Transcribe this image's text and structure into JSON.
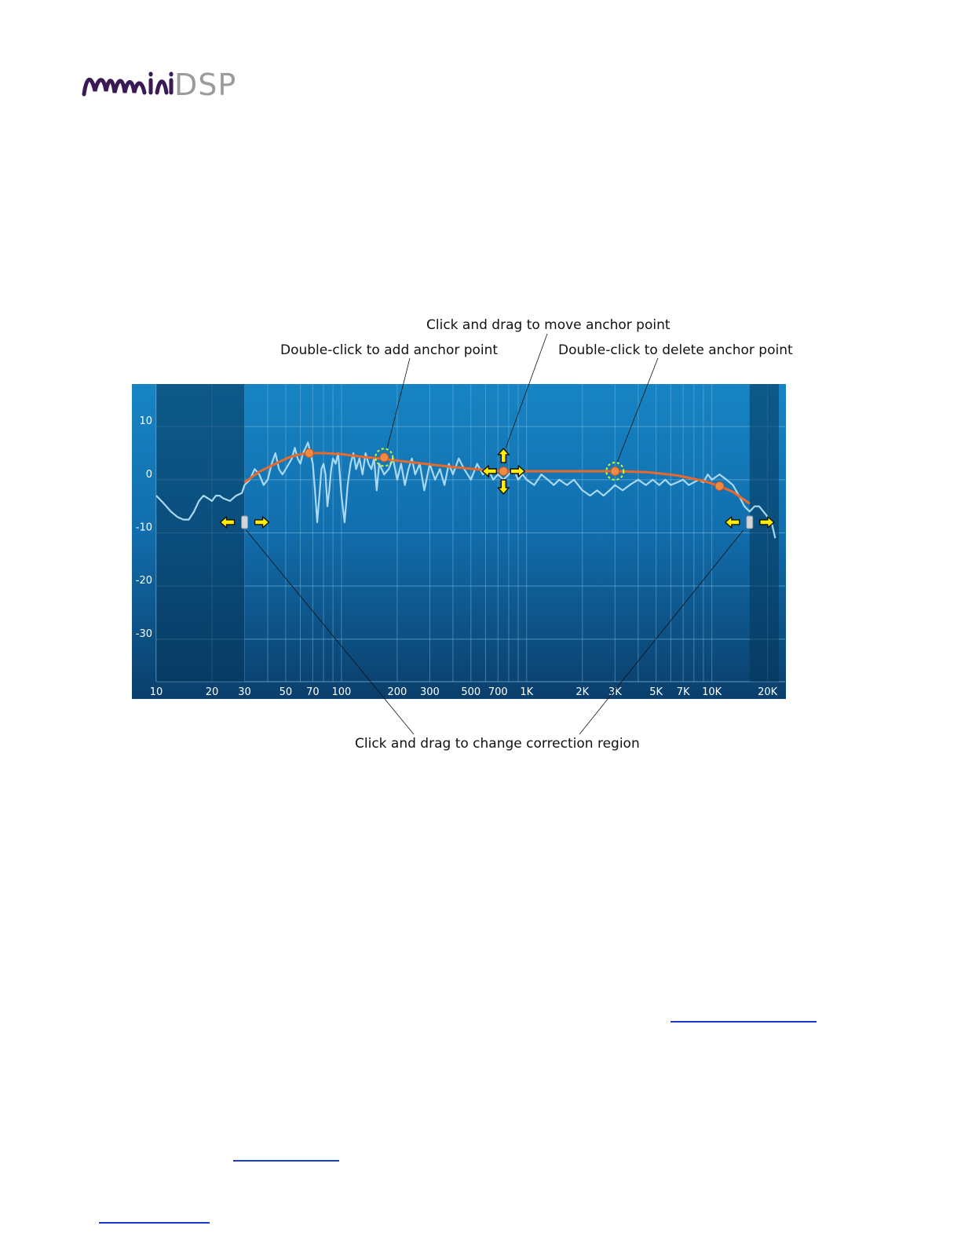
{
  "logo": {
    "text": "miniDSP",
    "part_mini": "mini",
    "part_dsp": "DSP",
    "color_mini": "#3a1a55",
    "color_dsp": "#9b9b9b"
  },
  "callouts": {
    "move": "Click and drag to move anchor point",
    "add": "Double-click to add anchor point",
    "delete": "Double-click to delete anchor point",
    "region": "Click and drag to change correction region"
  },
  "chart_data": {
    "type": "line",
    "xscale": "log",
    "xlim": [
      10,
      23000
    ],
    "ylim": [
      -38,
      18
    ],
    "x_ticks": [
      10,
      20,
      30,
      50,
      70,
      100,
      200,
      300,
      500,
      700,
      1000,
      2000,
      3000,
      5000,
      7000,
      10000,
      20000
    ],
    "x_tick_labels": [
      "10",
      "20",
      "30",
      "50",
      "70",
      "100",
      "200",
      "300",
      "500",
      "700",
      "1K",
      "2K",
      "3K",
      "5K",
      "7K",
      "10K",
      "20K"
    ],
    "y_ticks": [
      10,
      0,
      -10,
      -20,
      -30
    ],
    "y_tick_labels": [
      "10",
      "0",
      "-10",
      "-20",
      "-30"
    ],
    "grid": true,
    "correction_region": [
      30,
      16000
    ],
    "series": [
      {
        "role": "measurement",
        "color": "#a9d8f2",
        "x": [
          10,
          11,
          12,
          13,
          14,
          15,
          16,
          17,
          18,
          19,
          20,
          21,
          22,
          23,
          25,
          27,
          29,
          30,
          32,
          34,
          36,
          38,
          40,
          42,
          44,
          46,
          48,
          50,
          52,
          54,
          56,
          58,
          60,
          62,
          64,
          66,
          68,
          70,
          72,
          74,
          76,
          78,
          80,
          82,
          84,
          86,
          88,
          90,
          93,
          96,
          100,
          104,
          108,
          112,
          116,
          120,
          125,
          130,
          135,
          140,
          145,
          150,
          155,
          160,
          170,
          180,
          190,
          200,
          210,
          220,
          230,
          240,
          250,
          265,
          280,
          300,
          320,
          340,
          360,
          380,
          400,
          430,
          460,
          500,
          540,
          580,
          620,
          660,
          700,
          750,
          800,
          850,
          900,
          950,
          1000,
          1100,
          1200,
          1300,
          1400,
          1500,
          1650,
          1800,
          2000,
          2200,
          2400,
          2600,
          2800,
          3000,
          3300,
          3600,
          4000,
          4400,
          4800,
          5200,
          5600,
          6000,
          6500,
          7000,
          7500,
          8000,
          8500,
          9000,
          9500,
          10000,
          11000,
          12000,
          13000,
          14000,
          15000,
          16000,
          17000,
          18000,
          19000,
          20000,
          21000,
          22000
        ],
        "y": [
          -3,
          -4.5,
          -6,
          -7,
          -7.5,
          -7.5,
          -6,
          -4,
          -3,
          -3.5,
          -4,
          -3,
          -3,
          -3.5,
          -4,
          -3,
          -2.5,
          -1,
          0,
          2,
          1,
          -1,
          0,
          3,
          5,
          2,
          1,
          2,
          3,
          4,
          6,
          4,
          3,
          5,
          6,
          7,
          5,
          3,
          -2,
          -8,
          -3,
          2,
          3,
          1,
          -5,
          -2,
          2,
          4,
          3,
          5,
          -3,
          -8,
          -1,
          3,
          5,
          2,
          4,
          1,
          5,
          3,
          2,
          4,
          -2,
          3,
          1,
          2,
          4,
          0,
          3,
          -1,
          2,
          4,
          1,
          3,
          -2,
          3,
          0,
          2,
          -1,
          3,
          1,
          4,
          2,
          0,
          3,
          1,
          2,
          0,
          1,
          0,
          1,
          2,
          0,
          1,
          0,
          -1,
          1,
          0,
          -1,
          0,
          -1,
          0,
          -2,
          -3,
          -2,
          -3,
          -2,
          -1,
          -2,
          -1,
          0,
          -1,
          0,
          -1,
          0,
          -1,
          -0.5,
          0,
          -1,
          -0.5,
          0,
          -0.5,
          1,
          0,
          1,
          0,
          -1,
          -3,
          -5,
          -6,
          -5,
          -5,
          -6,
          -7,
          -8,
          -11
        ]
      },
      {
        "role": "target_curve",
        "color": "#e8692c",
        "x": [
          30,
          36,
          44,
          52,
          60,
          67,
          80,
          100,
          130,
          160,
          200,
          280,
          400,
          560,
          750,
          1000,
          1500,
          2000,
          3000,
          4500,
          6500,
          9000,
          11000,
          13000,
          15000,
          16000
        ],
        "y": [
          -0.5,
          1.5,
          3,
          4.2,
          4.8,
          5,
          5,
          4.8,
          4.3,
          4,
          3.6,
          3,
          2.4,
          1.9,
          1.6,
          1.6,
          1.6,
          1.6,
          1.6,
          1.4,
          0.8,
          -0.2,
          -1.2,
          -2.3,
          -3.8,
          -4.5
        ]
      }
    ],
    "anchors": [
      {
        "x": 67,
        "y": 5,
        "state": "normal"
      },
      {
        "x": 170,
        "y": 4.2,
        "state": "add"
      },
      {
        "x": 750,
        "y": 1.6,
        "state": "move"
      },
      {
        "x": 3000,
        "y": 1.6,
        "state": "delete"
      },
      {
        "x": 11000,
        "y": -1.2,
        "state": "normal"
      }
    ],
    "colors": {
      "background_top": "#1784c3",
      "background_bottom": "#0a3e6b",
      "grid": "#7fc0e6",
      "arrow": "#ffee00",
      "glow": "#c8ff2a"
    }
  },
  "links": [
    {
      "label": "",
      "color": "#1a3cc8"
    },
    {
      "label": "",
      "color": "#1a3cc8"
    },
    {
      "label": "",
      "color": "#1a3cc8"
    }
  ]
}
